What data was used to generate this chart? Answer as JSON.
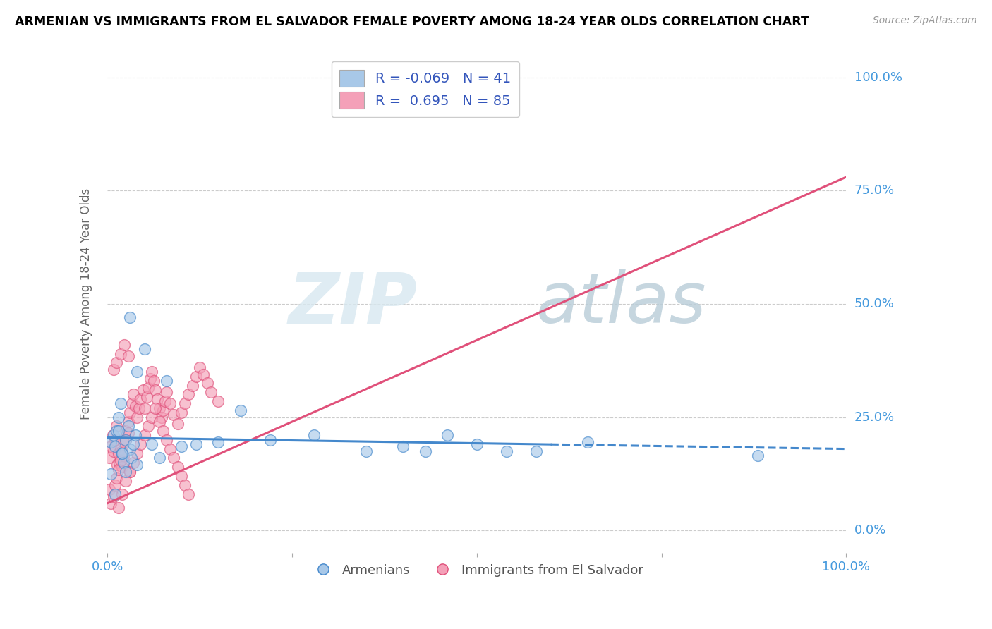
{
  "title": "ARMENIAN VS IMMIGRANTS FROM EL SALVADOR FEMALE POVERTY AMONG 18-24 YEAR OLDS CORRELATION CHART",
  "source": "Source: ZipAtlas.com",
  "ylabel": "Female Poverty Among 18-24 Year Olds",
  "xlim": [
    0,
    1
  ],
  "ylim": [
    -0.05,
    1.05
  ],
  "xticks": [
    0,
    0.25,
    0.5,
    0.75,
    1.0
  ],
  "xtick_labels": [
    "0.0%",
    "",
    "",
    "",
    "100.0%"
  ],
  "ytick_labels": [
    "0.0%",
    "25.0%",
    "50.0%",
    "75.0%",
    "100.0%"
  ],
  "yticks": [
    0,
    0.25,
    0.5,
    0.75,
    1.0
  ],
  "blue_color": "#a8c8e8",
  "pink_color": "#f4a0b8",
  "blue_line_color": "#4488cc",
  "pink_line_color": "#e0507a",
  "legend_r_blue": "-0.069",
  "legend_n_blue": "41",
  "legend_r_pink": "0.695",
  "legend_n_pink": "85",
  "legend_label_blue": "Armenians",
  "legend_label_pink": "Immigrants from El Salvador",
  "watermark_zip": "ZIP",
  "watermark_atlas": "atlas",
  "blue_line_x_solid_end": 0.6,
  "pink_line_intercept": 0.06,
  "pink_line_slope": 0.72,
  "blue_line_intercept": 0.205,
  "blue_line_slope": -0.025,
  "blue_scatter_x": [
    0.005,
    0.008,
    0.01,
    0.012,
    0.015,
    0.018,
    0.02,
    0.022,
    0.025,
    0.028,
    0.03,
    0.032,
    0.035,
    0.038,
    0.04,
    0.005,
    0.01,
    0.015,
    0.02,
    0.025,
    0.03,
    0.04,
    0.05,
    0.06,
    0.07,
    0.08,
    0.1,
    0.12,
    0.15,
    0.18,
    0.22,
    0.28,
    0.35,
    0.4,
    0.43,
    0.46,
    0.5,
    0.54,
    0.58,
    0.65,
    0.88
  ],
  "blue_scatter_y": [
    0.195,
    0.21,
    0.185,
    0.22,
    0.25,
    0.28,
    0.17,
    0.15,
    0.2,
    0.23,
    0.18,
    0.16,
    0.19,
    0.21,
    0.145,
    0.125,
    0.08,
    0.22,
    0.17,
    0.13,
    0.47,
    0.35,
    0.4,
    0.19,
    0.16,
    0.33,
    0.185,
    0.19,
    0.195,
    0.265,
    0.2,
    0.21,
    0.175,
    0.185,
    0.175,
    0.21,
    0.19,
    0.175,
    0.175,
    0.195,
    0.165
  ],
  "pink_scatter_x": [
    0.003,
    0.005,
    0.007,
    0.008,
    0.01,
    0.012,
    0.013,
    0.015,
    0.016,
    0.018,
    0.02,
    0.022,
    0.025,
    0.028,
    0.03,
    0.003,
    0.005,
    0.008,
    0.01,
    0.012,
    0.015,
    0.018,
    0.02,
    0.022,
    0.025,
    0.028,
    0.03,
    0.033,
    0.035,
    0.038,
    0.04,
    0.043,
    0.045,
    0.048,
    0.05,
    0.053,
    0.055,
    0.058,
    0.06,
    0.063,
    0.065,
    0.068,
    0.07,
    0.073,
    0.075,
    0.078,
    0.08,
    0.085,
    0.09,
    0.095,
    0.1,
    0.105,
    0.11,
    0.115,
    0.12,
    0.125,
    0.13,
    0.135,
    0.14,
    0.15,
    0.015,
    0.02,
    0.025,
    0.03,
    0.035,
    0.04,
    0.045,
    0.05,
    0.055,
    0.06,
    0.065,
    0.07,
    0.075,
    0.08,
    0.085,
    0.09,
    0.095,
    0.1,
    0.105,
    0.11,
    0.008,
    0.012,
    0.018,
    0.023,
    0.028
  ],
  "pink_scatter_y": [
    0.16,
    0.185,
    0.21,
    0.175,
    0.2,
    0.23,
    0.145,
    0.17,
    0.15,
    0.18,
    0.14,
    0.165,
    0.2,
    0.215,
    0.13,
    0.09,
    0.06,
    0.075,
    0.1,
    0.115,
    0.135,
    0.155,
    0.175,
    0.195,
    0.22,
    0.24,
    0.26,
    0.28,
    0.3,
    0.275,
    0.25,
    0.27,
    0.29,
    0.31,
    0.27,
    0.295,
    0.315,
    0.335,
    0.35,
    0.33,
    0.31,
    0.29,
    0.27,
    0.25,
    0.265,
    0.285,
    0.305,
    0.28,
    0.255,
    0.235,
    0.26,
    0.28,
    0.3,
    0.32,
    0.34,
    0.36,
    0.345,
    0.325,
    0.305,
    0.285,
    0.05,
    0.08,
    0.11,
    0.13,
    0.15,
    0.17,
    0.19,
    0.21,
    0.23,
    0.25,
    0.27,
    0.24,
    0.22,
    0.2,
    0.18,
    0.16,
    0.14,
    0.12,
    0.1,
    0.08,
    0.355,
    0.37,
    0.39,
    0.41,
    0.385
  ]
}
